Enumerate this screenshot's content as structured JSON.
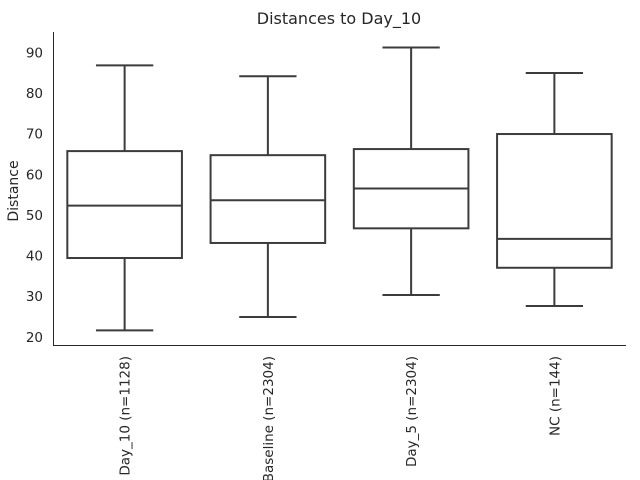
{
  "chart_data": {
    "type": "box",
    "title": "Distances to Day_10",
    "xlabel": "",
    "ylabel": "Distance",
    "ylim": [
      18,
      95
    ],
    "yticks": [
      20,
      30,
      40,
      50,
      60,
      70,
      80,
      90
    ],
    "grid": false,
    "categories": [
      "Day_10 (n=1128)",
      "Baseline (n=2304)",
      "Day_5 (n=2304)",
      "NC (n=144)"
    ],
    "boxes": [
      {
        "category": "Day_10 (n=1128)",
        "min": 21.6,
        "q1": 39.4,
        "median": 52.3,
        "q3": 65.7,
        "max": 86.8
      },
      {
        "category": "Baseline (n=2304)",
        "min": 24.9,
        "q1": 43.1,
        "median": 53.6,
        "q3": 64.7,
        "max": 84.1
      },
      {
        "category": "Day_5 (n=2304)",
        "min": 30.3,
        "q1": 46.7,
        "median": 56.5,
        "q3": 66.2,
        "max": 91.2
      },
      {
        "category": "NC (n=144)",
        "min": 27.6,
        "q1": 37.0,
        "median": 44.1,
        "q3": 69.9,
        "max": 84.9
      }
    ],
    "colors": {
      "box_edge": "#3c3c3c",
      "box_fill": "#ffffff",
      "text": "#262626"
    }
  }
}
